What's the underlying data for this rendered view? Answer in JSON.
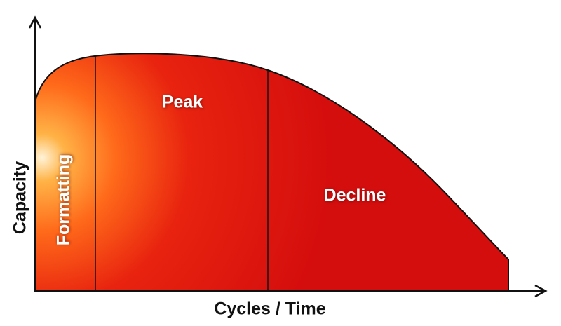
{
  "axes": {
    "y_label": "Capacity",
    "x_label": "Cycles / Time"
  },
  "regions": [
    {
      "label": "Formatting"
    },
    {
      "label": "Peak"
    },
    {
      "label": "Decline"
    }
  ]
}
